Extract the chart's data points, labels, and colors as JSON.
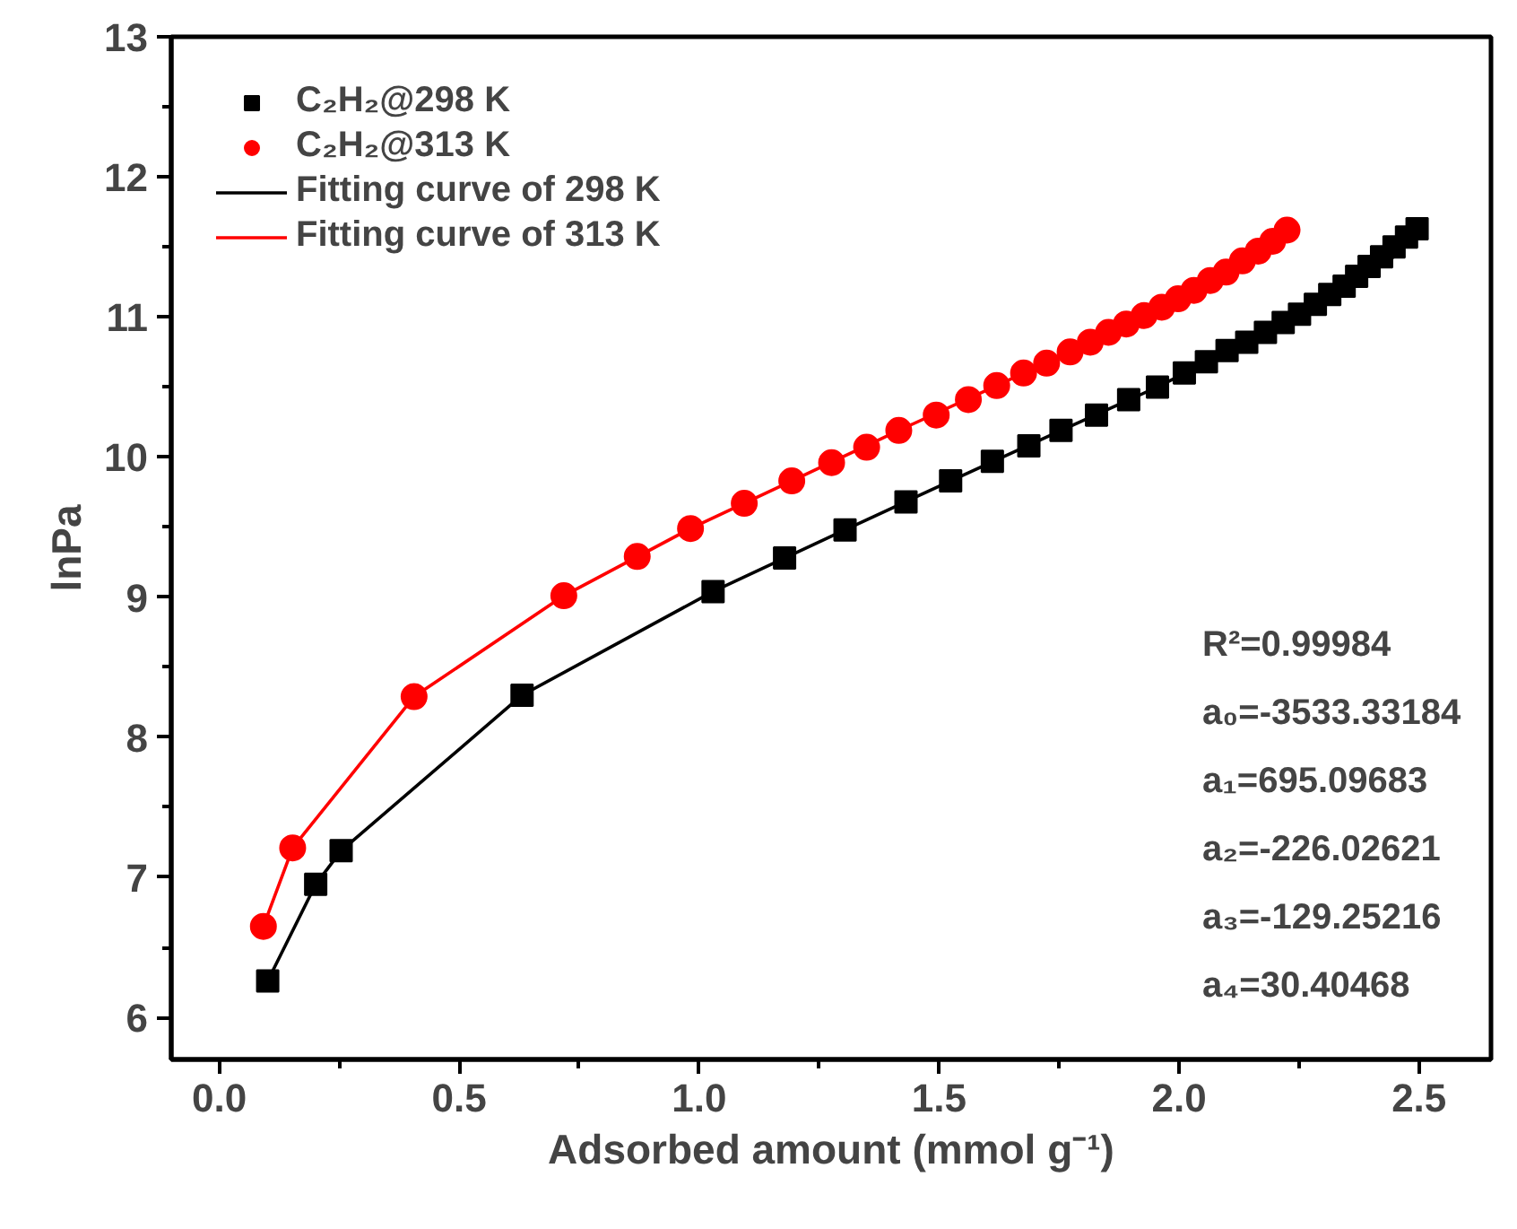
{
  "chart_data": {
    "type": "scatter",
    "xlabel": "Adsorbed amount (mmol g⁻¹)",
    "ylabel": "lnPa",
    "xlim": [
      -0.1,
      2.65
    ],
    "ylim": [
      5.7,
      13
    ],
    "xticks": [
      {
        "value": 0,
        "label": "0.0"
      },
      {
        "value": 0.5,
        "label": "0.5"
      },
      {
        "value": 1,
        "label": "1.0"
      },
      {
        "value": 1.5,
        "label": "1.5"
      },
      {
        "value": 2,
        "label": "2.0"
      },
      {
        "value": 2.5,
        "label": "2.5"
      }
    ],
    "yticks": [
      6,
      7,
      8,
      9,
      10,
      11,
      12,
      13
    ],
    "legend": "top left",
    "grid": false,
    "series": [
      {
        "name": "C₂H₂@298 K",
        "color": "#000000",
        "marker": "square",
        "x": [
          0.101,
          0.201,
          0.254,
          0.631,
          1.029,
          1.178,
          1.304,
          1.431,
          1.524,
          1.611,
          1.687,
          1.754,
          1.828,
          1.895,
          1.955,
          2.011,
          2.057,
          2.1,
          2.141,
          2.18,
          2.217,
          2.251,
          2.284,
          2.314,
          2.344,
          2.37,
          2.396,
          2.422,
          2.448,
          2.474,
          2.496
        ],
        "values": [
          6.26,
          6.95,
          7.19,
          8.3,
          9.04,
          9.28,
          9.48,
          9.68,
          9.83,
          9.97,
          10.08,
          10.19,
          10.3,
          10.41,
          10.5,
          10.6,
          10.68,
          10.76,
          10.82,
          10.89,
          10.96,
          11.02,
          11.09,
          11.16,
          11.22,
          11.29,
          11.36,
          11.43,
          11.5,
          11.57,
          11.63
        ]
      },
      {
        "name": "C₂H₂@313 K",
        "color": "#ff0000",
        "marker": "circle",
        "x": [
          0.092,
          0.153,
          0.406,
          0.718,
          0.871,
          0.982,
          1.094,
          1.193,
          1.276,
          1.349,
          1.416,
          1.494,
          1.561,
          1.62,
          1.676,
          1.724,
          1.773,
          1.815,
          1.853,
          1.89,
          1.927,
          1.964,
          1.998,
          2.031,
          2.065,
          2.098,
          2.132,
          2.165,
          2.195,
          2.225
        ],
        "values": [
          6.65,
          7.21,
          8.29,
          9.01,
          9.29,
          9.49,
          9.67,
          9.83,
          9.96,
          10.07,
          10.19,
          10.3,
          10.41,
          10.51,
          10.6,
          10.67,
          10.75,
          10.82,
          10.89,
          10.95,
          11.01,
          11.07,
          11.13,
          11.19,
          11.26,
          11.32,
          11.4,
          11.47,
          11.54,
          11.62
        ]
      },
      {
        "name": "Fitting curve of 298 K",
        "type": "line",
        "color": "#000000",
        "line_style": "solid",
        "x": [
          0.101,
          0.201,
          0.254,
          0.631,
          1.029,
          1.304,
          1.524,
          1.754,
          1.955,
          2.141,
          2.314,
          2.448,
          2.496
        ],
        "values": [
          6.26,
          6.95,
          7.19,
          8.3,
          9.04,
          9.48,
          9.83,
          10.19,
          10.5,
          10.82,
          11.16,
          11.43,
          11.63
        ]
      },
      {
        "name": "Fitting curve of 313 K",
        "type": "line",
        "color": "#ff0000",
        "line_style": "solid",
        "x": [
          0.092,
          0.153,
          0.406,
          0.718,
          0.982,
          1.193,
          1.416,
          1.62,
          1.815,
          1.998,
          2.132,
          2.225
        ],
        "values": [
          6.65,
          7.21,
          8.29,
          9.01,
          9.49,
          9.83,
          10.19,
          10.51,
          10.82,
          11.13,
          11.4,
          11.62
        ]
      }
    ],
    "annotations": [
      "R²=0.99984",
      "a₀=-3533.33184",
      "a₁=695.09683",
      "a₂=-226.02621",
      "a₃=-129.25216",
      "a₄=30.40468"
    ]
  }
}
